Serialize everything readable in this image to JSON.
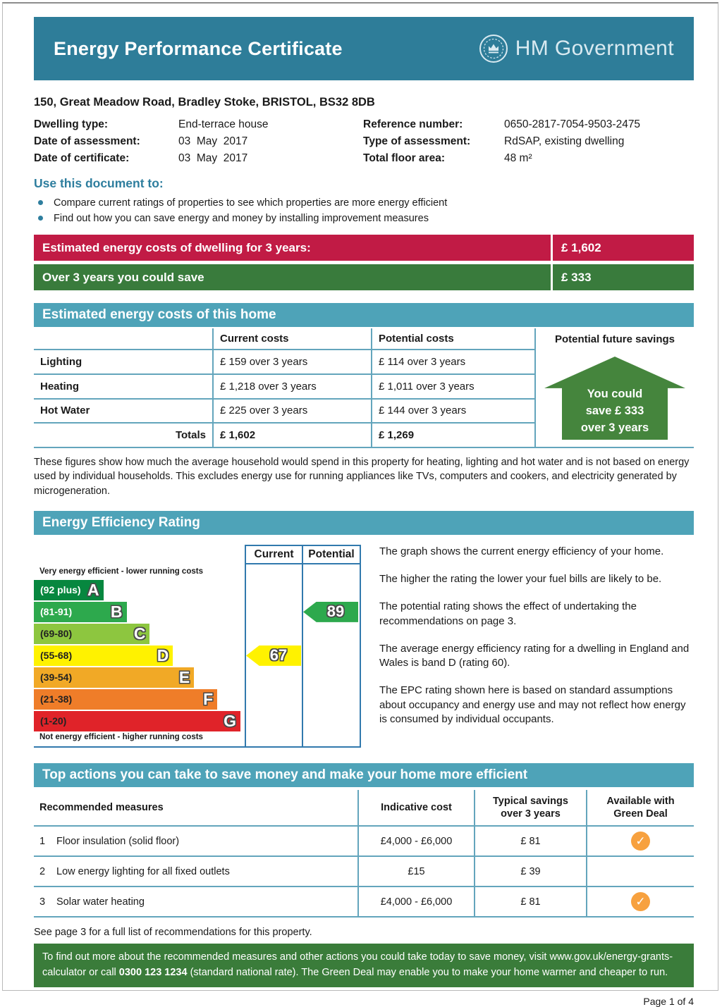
{
  "colors": {
    "header_teal": "#2E7D99",
    "section_teal": "#4EA3B8",
    "heading_teal": "#2E7E9E",
    "bullet_teal": "#2E7E9E",
    "table_line": "#63A5BC",
    "chart_line": "#3179AD",
    "house_green": "#45853D",
    "check_orange": "#F7A13F",
    "info_green": "#3A7C3A"
  },
  "header": {
    "title": "Energy Performance Certificate",
    "logo_text": "HM Government"
  },
  "property": {
    "address": "150, Great Meadow Road, Bradley Stoke, BRISTOL, BS32 8DB",
    "details": [
      {
        "label": "Dwelling type:",
        "value": "End-terrace house"
      },
      {
        "label": "Date of assessment:",
        "value": "03  May  2017"
      },
      {
        "label": "Date of certificate:",
        "value": "03  May  2017"
      },
      {
        "label": "Reference number:",
        "value": "0650-2817-7054-9503-2475"
      },
      {
        "label": "Type of assessment:",
        "value": "RdSAP, existing dwelling"
      },
      {
        "label": "Total floor area:",
        "value": "48 m²"
      }
    ]
  },
  "use_document": {
    "heading": "Use this document to:",
    "bullets": [
      "Compare current ratings of properties to see which properties are more energy efficient",
      "Find out how you can save energy and money by installing improvement measures"
    ]
  },
  "summary_banners": [
    {
      "label": "Estimated energy costs of dwelling for 3 years:",
      "value": "£ 1,602",
      "color": "#C11B45"
    },
    {
      "label": "Over 3 years you could save",
      "value": "£ 333",
      "color": "#397B3C"
    }
  ],
  "costs_section": {
    "title": "Estimated energy costs of this home",
    "col_headers": [
      "Current costs",
      "Potential costs",
      "Potential future savings"
    ],
    "rows": [
      {
        "label": "Lighting",
        "current": "£ 159 over 3 years",
        "potential": "£ 114 over 3 years"
      },
      {
        "label": "Heating",
        "current": "£ 1,218 over 3 years",
        "potential": "£ 1,011 over 3 years"
      },
      {
        "label": "Hot Water",
        "current": "£ 225 over 3 years",
        "potential": "£ 144 over 3 years"
      }
    ],
    "totals": {
      "label": "Totals",
      "current": "£ 1,602",
      "potential": "£ 1,269"
    },
    "savings_house": [
      "You could",
      "save £ 333",
      "over 3 years"
    ],
    "footnote": "These figures show how much the average household would spend in this property for heating, lighting and hot water and is not based on energy used by individual households. This excludes energy use for running appliances like TVs, computers and cookers, and electricity generated by microgeneration."
  },
  "rating_section": {
    "title": "Energy Efficiency Rating",
    "paragraphs": [
      "The graph shows the current energy efficiency of your home.",
      "The higher the rating the lower your fuel bills are likely to be.",
      "The potential rating shows the effect of undertaking the recommendations on page 3.",
      "The average energy efficiency rating for a dwelling in England and Wales is band D (rating 60).",
      "The EPC rating shown here is based on standard assumptions about occupancy and energy use and may not reflect how energy is consumed by individual occupants."
    ]
  },
  "chart_data": {
    "type": "epc-rating-bands",
    "columns": [
      "Current",
      "Potential"
    ],
    "top_label": "Very energy efficient - lower running costs",
    "bottom_label": "Not energy efficient - higher running costs",
    "bands": [
      {
        "letter": "A",
        "range": "(92 plus)",
        "color": "#07873F",
        "label_color": "#ffffff",
        "width_pct": 33
      },
      {
        "letter": "B",
        "range": "(81-91)",
        "color": "#2DA94D",
        "label_color": "#ffffff",
        "width_pct": 44
      },
      {
        "letter": "C",
        "range": "(69-80)",
        "color": "#8DC63F",
        "label_color": "#222222",
        "width_pct": 55
      },
      {
        "letter": "D",
        "range": "(55-68)",
        "color": "#FFF200",
        "label_color": "#222222",
        "width_pct": 66
      },
      {
        "letter": "E",
        "range": "(39-54)",
        "color": "#F1A926",
        "label_color": "#222222",
        "width_pct": 76
      },
      {
        "letter": "F",
        "range": "(21-38)",
        "color": "#EF7D29",
        "label_color": "#222222",
        "width_pct": 87
      },
      {
        "letter": "G",
        "range": "(1-20)",
        "color": "#E02329",
        "label_color": "#222222",
        "width_pct": 98
      }
    ],
    "current": {
      "value": 67,
      "band": "D",
      "band_index": 3,
      "color": "#FFF200"
    },
    "potential": {
      "value": 89,
      "band": "B",
      "band_index": 1,
      "color": "#2DA94D"
    }
  },
  "actions_section": {
    "title": "Top actions you can take to save money and make your home more efficient",
    "col_headers": [
      "Recommended measures",
      "Indicative cost",
      "Typical savings over 3 years",
      "Available with Green Deal"
    ],
    "rows": [
      {
        "num": "1",
        "measure": "Floor insulation (solid floor)",
        "cost": "£4,000 - £6,000",
        "savings": "£ 81",
        "green_deal": true
      },
      {
        "num": "2",
        "measure": "Low energy lighting for all fixed outlets",
        "cost": "£15",
        "savings": "£ 39",
        "green_deal": false
      },
      {
        "num": "3",
        "measure": "Solar water heating",
        "cost": "£4,000 - £6,000",
        "savings": "£ 81",
        "green_deal": true
      }
    ],
    "see_page_note": "See page 3 for a full list of recommendations for this property."
  },
  "info_box": {
    "text_before": "To find out more about the recommended measures and other actions you could take today to save money, visit www.gov.uk/energy-grants-calculator or call ",
    "phone": "0300 123 1234",
    "text_after": " (standard national rate). The Green Deal may enable you to make your home warmer and cheaper to run."
  },
  "footer": {
    "page_label": "Page 1 of 4"
  }
}
